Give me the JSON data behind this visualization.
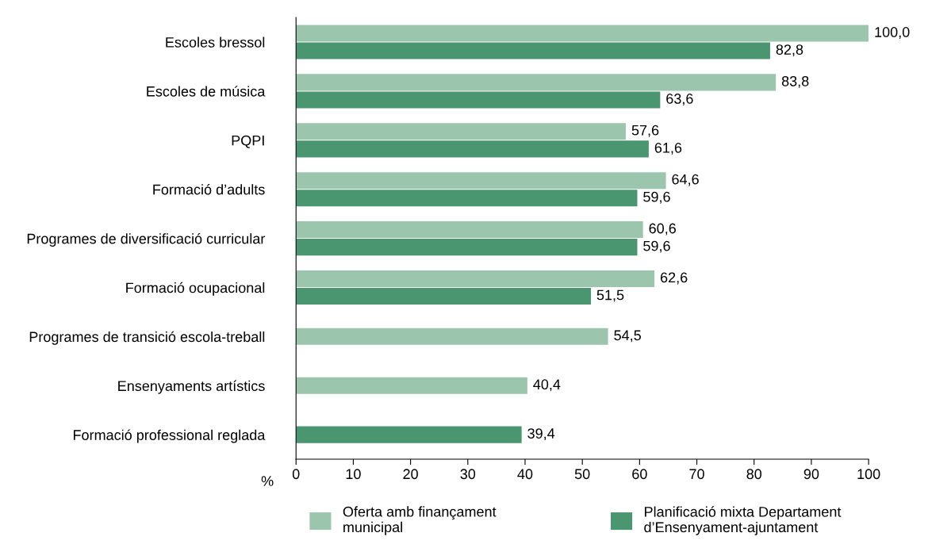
{
  "chart_data": {
    "type": "bar",
    "orientation": "horizontal",
    "xlabel": "%",
    "categories": [
      "Escoles bressol",
      "Escoles de música",
      "PQPI",
      "Formació d’adults",
      "Programes de diversificació curricular",
      "Formació ocupacional",
      "Programes de transició escola-treball",
      "Ensenyaments artístics",
      "Formació professional reglada"
    ],
    "series": [
      {
        "name": "Oferta amb finançament\nmunicipal",
        "color": "#9cc5ad",
        "values": [
          100.0,
          83.8,
          57.6,
          64.6,
          60.6,
          62.6,
          54.5,
          40.4,
          null
        ],
        "value_labels": [
          "100,0",
          "83,8",
          "57,6",
          "64,6",
          "60,6",
          "62,6",
          "54,5",
          "40,4",
          null
        ]
      },
      {
        "name": "Planificació mixta Departament\nd’Ensenyament-ajuntament",
        "color": "#4a9670",
        "values": [
          82.8,
          63.6,
          61.6,
          59.6,
          59.6,
          51.5,
          null,
          null,
          39.4
        ],
        "value_labels": [
          "82,8",
          "63,6",
          "61,6",
          "59,6",
          "59,6",
          "51,5",
          null,
          null,
          "39,4"
        ]
      }
    ],
    "xlim": [
      0,
      100
    ],
    "xticks": [
      0,
      10,
      20,
      30,
      40,
      50,
      60,
      70,
      80,
      90,
      100
    ],
    "grid": false,
    "legend": "bottom"
  }
}
